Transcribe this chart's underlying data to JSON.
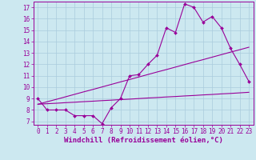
{
  "xlabel": "Windchill (Refroidissement éolien,°C)",
  "bg_color": "#cce8f0",
  "line_color": "#990099",
  "xlim": [
    -0.5,
    23.5
  ],
  "ylim": [
    6.7,
    17.5
  ],
  "yticks": [
    7,
    8,
    9,
    10,
    11,
    12,
    13,
    14,
    15,
    16,
    17
  ],
  "xticks": [
    0,
    1,
    2,
    3,
    4,
    5,
    6,
    7,
    8,
    9,
    10,
    11,
    12,
    13,
    14,
    15,
    16,
    17,
    18,
    19,
    20,
    21,
    22,
    23
  ],
  "line1_x": [
    0,
    1,
    2,
    3,
    4,
    5,
    6,
    7,
    8,
    9,
    10,
    11,
    12,
    13,
    14,
    15,
    16,
    17,
    18,
    19,
    20,
    21,
    22,
    23
  ],
  "line1_y": [
    9.0,
    8.0,
    8.0,
    8.0,
    7.5,
    7.5,
    7.5,
    6.8,
    8.2,
    9.0,
    11.0,
    11.1,
    12.0,
    12.8,
    15.2,
    14.8,
    17.3,
    17.0,
    15.7,
    16.2,
    15.2,
    13.4,
    12.0,
    10.5
  ],
  "line2_x": [
    0,
    1,
    2,
    3,
    4,
    5,
    6,
    7,
    8,
    9,
    10,
    11,
    12,
    13,
    14,
    15,
    16,
    17,
    18,
    19,
    20,
    21,
    22,
    23
  ],
  "line2_y": [
    8.5,
    8.72,
    8.93,
    9.15,
    9.37,
    9.59,
    9.8,
    10.02,
    10.24,
    10.46,
    10.67,
    10.89,
    11.11,
    11.33,
    11.54,
    11.76,
    11.98,
    12.2,
    12.41,
    12.63,
    12.85,
    13.07,
    13.28,
    13.5
  ],
  "line3_x": [
    0,
    1,
    2,
    3,
    4,
    5,
    6,
    7,
    8,
    9,
    10,
    11,
    12,
    13,
    14,
    15,
    16,
    17,
    18,
    19,
    20,
    21,
    22,
    23
  ],
  "line3_y": [
    8.5,
    8.55,
    8.59,
    8.64,
    8.68,
    8.73,
    8.77,
    8.82,
    8.86,
    8.91,
    8.95,
    9.0,
    9.05,
    9.09,
    9.14,
    9.18,
    9.23,
    9.27,
    9.32,
    9.36,
    9.41,
    9.45,
    9.5,
    9.55
  ],
  "markersize": 2.0,
  "linewidth": 0.8,
  "grid_color": "#aaccdd",
  "xlabel_fontsize": 6.5,
  "tick_fontsize": 5.5
}
